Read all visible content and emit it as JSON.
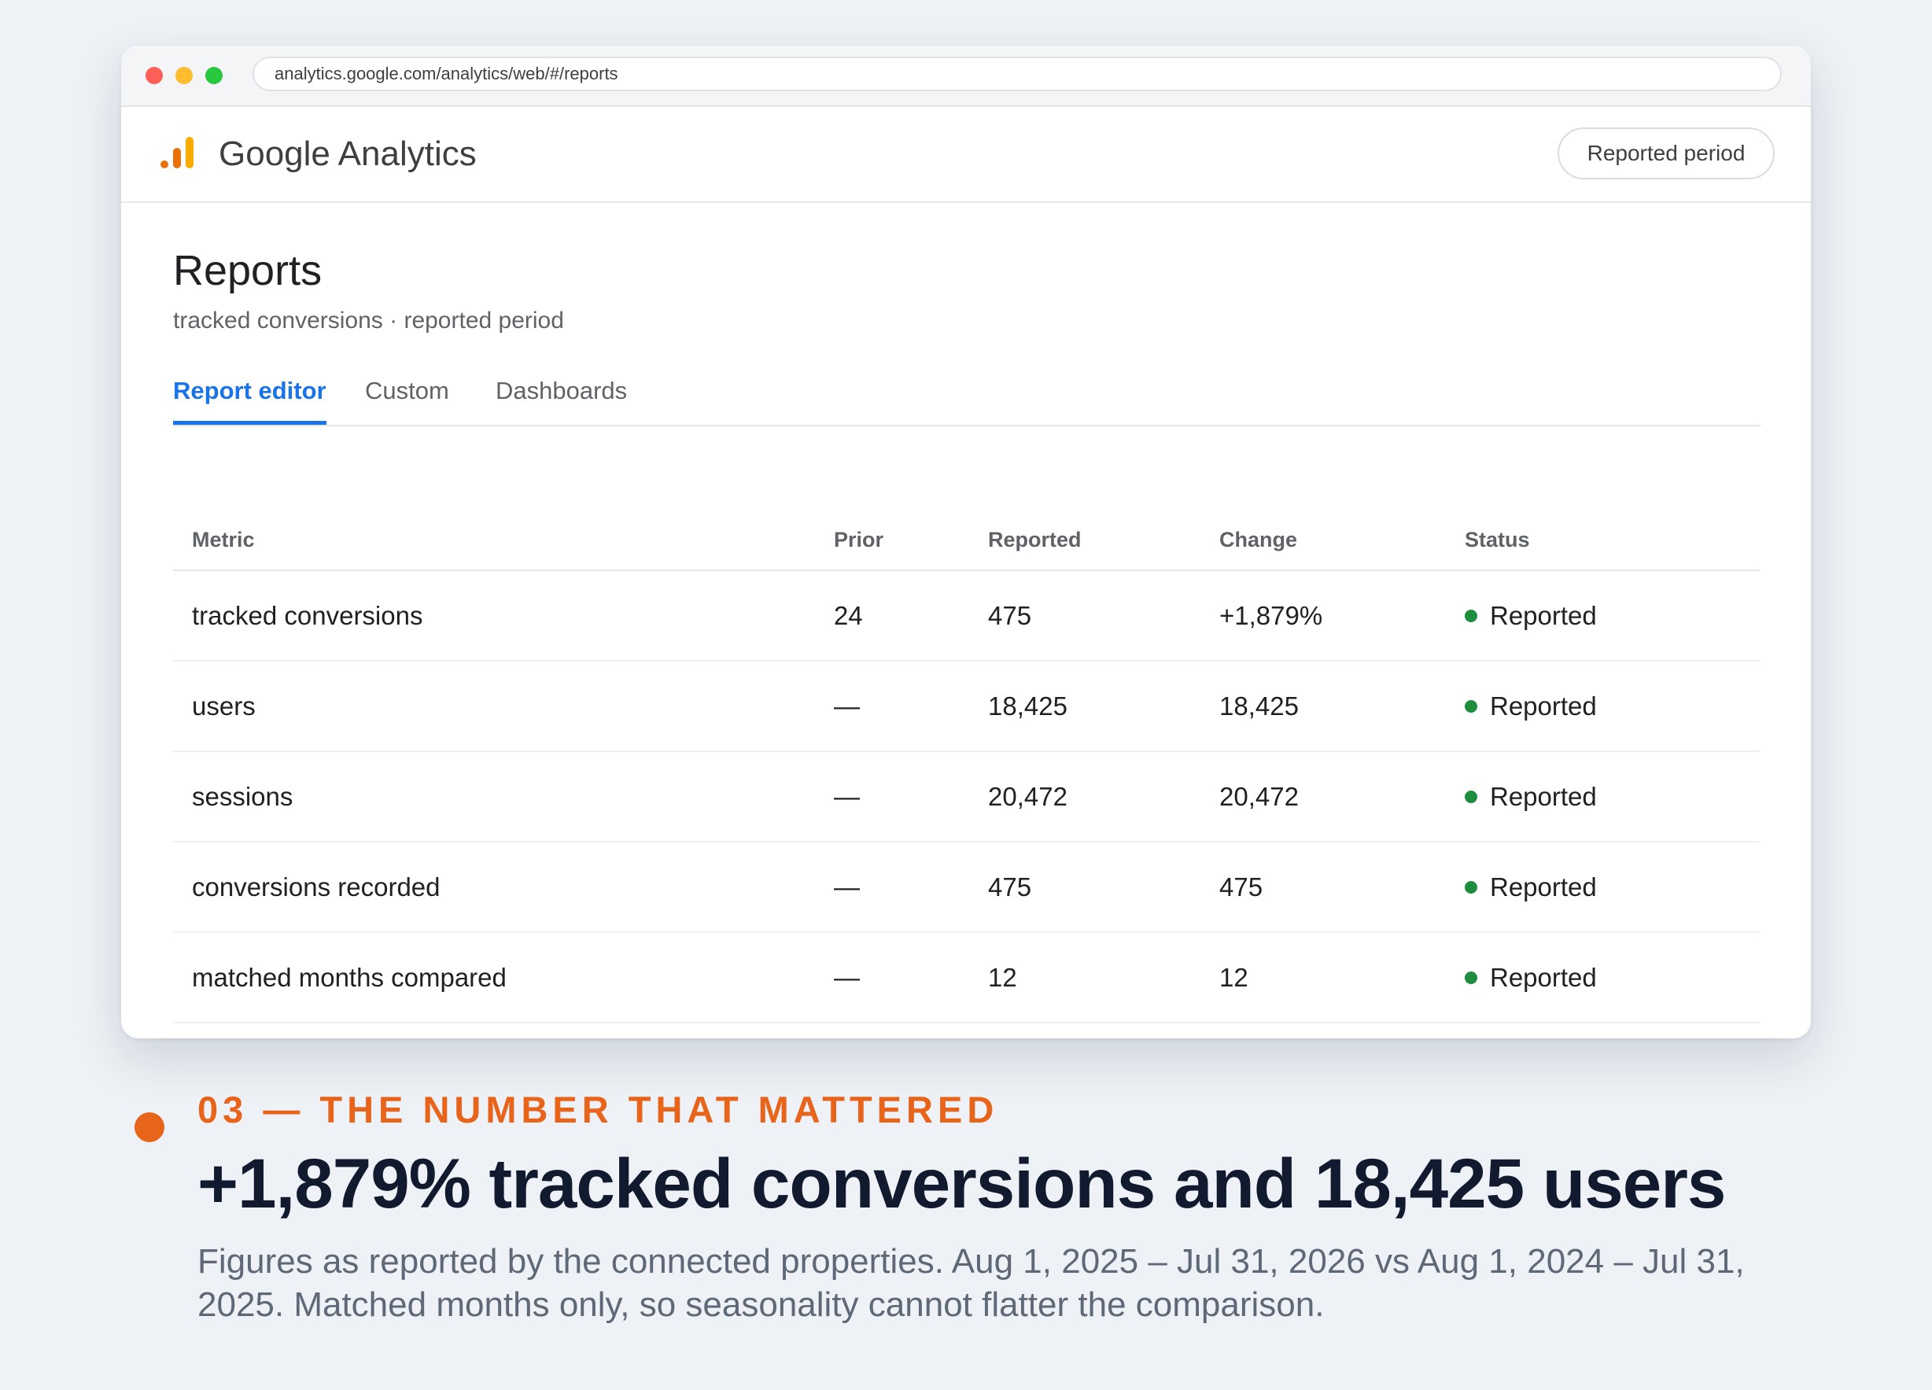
{
  "browser": {
    "url": "analytics.google.com/analytics/web/#/reports"
  },
  "app": {
    "brand": "Google Analytics",
    "period_button": "Reported period",
    "colors": {
      "brand_orange": "#e8710a",
      "brand_yellow": "#f9ab00",
      "link_blue": "#1a73e8",
      "status_green": "#1e8e3e"
    }
  },
  "page": {
    "title": "Reports",
    "subtitle": "tracked conversions · reported period"
  },
  "tabs": [
    {
      "label": "Report editor",
      "active": true
    },
    {
      "label": "Custom",
      "active": false
    },
    {
      "label": "Dashboards",
      "active": false
    }
  ],
  "table": {
    "headers": [
      "Metric",
      "Prior",
      "Reported",
      "Change",
      "Status"
    ],
    "rows": [
      {
        "metric": "tracked conversions",
        "prior": "24",
        "reported": "475",
        "change": "+1,879%",
        "status": "Reported"
      },
      {
        "metric": "users",
        "prior": "—",
        "reported": "18,425",
        "change": "18,425",
        "status": "Reported"
      },
      {
        "metric": "sessions",
        "prior": "—",
        "reported": "20,472",
        "change": "20,472",
        "status": "Reported"
      },
      {
        "metric": "conversions recorded",
        "prior": "—",
        "reported": "475",
        "change": "475",
        "status": "Reported"
      },
      {
        "metric": "matched months compared",
        "prior": "—",
        "reported": "12",
        "change": "12",
        "status": "Reported"
      }
    ]
  },
  "caption": {
    "eyebrow": "03 — THE NUMBER THAT MATTERED",
    "headline": "+1,879% tracked conversions and 18,425 users",
    "note": "Figures as reported by the connected properties. Aug 1, 2025 – Jul 31, 2026 vs Aug 1, 2024 – Jul 31, 2025. Matched months only, so seasonality cannot flatter the comparison.",
    "accent_color": "#e8641b"
  }
}
